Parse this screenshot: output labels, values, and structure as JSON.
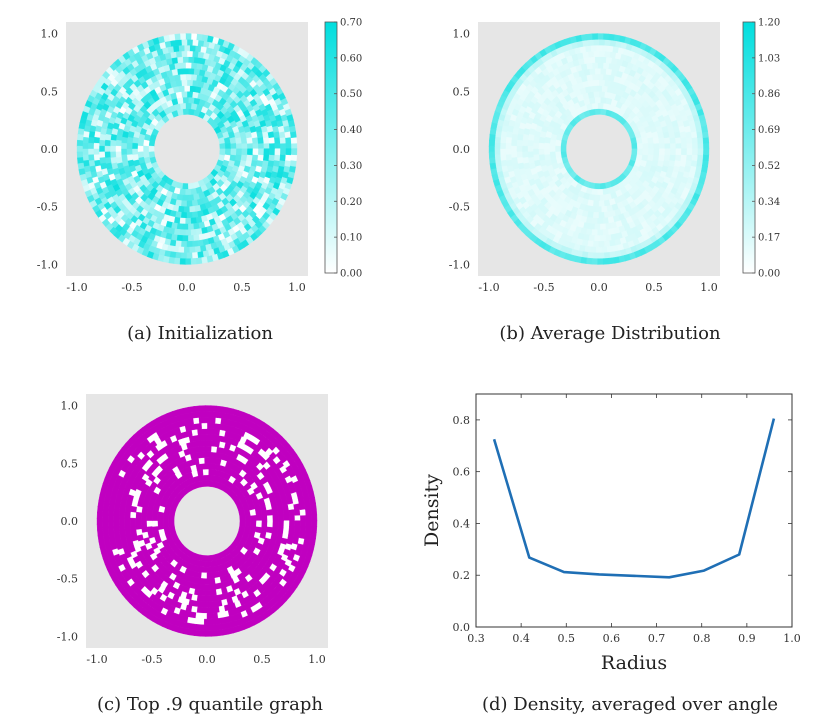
{
  "chart_data": [
    {
      "type": "heatmap",
      "caption": "(a) Initialization",
      "plot": "annulus",
      "xticks": [
        "-1.0",
        "-0.5",
        "0.0",
        "0.5",
        "1.0"
      ],
      "yticks": [
        "1.0",
        "0.5",
        "0.0",
        "-0.5",
        "-1.0"
      ],
      "xlim": [
        -1.1,
        1.1
      ],
      "ylim": [
        -1.1,
        1.1
      ],
      "inner_radius": 0.3,
      "outer_radius": 1.0,
      "colorbar": {
        "ticks": [
          "0.70",
          "0.60",
          "0.50",
          "0.40",
          "0.30",
          "0.20",
          "0.10",
          "0.00"
        ],
        "min": 0,
        "max": 0.7
      },
      "colors": {
        "high": "#00dede",
        "low": "#ffffff",
        "background": "#e6e6e6"
      },
      "pattern": "random"
    },
    {
      "type": "heatmap",
      "caption": "(b) Average Distribution",
      "plot": "annulus",
      "xticks": [
        "-1.0",
        "-0.5",
        "0.0",
        "0.5",
        "1.0"
      ],
      "yticks": [
        "1.0",
        "0.5",
        "0.0",
        "-0.5",
        "-1.0"
      ],
      "xlim": [
        -1.1,
        1.1
      ],
      "ylim": [
        -1.1,
        1.1
      ],
      "inner_radius": 0.3,
      "outer_radius": 1.0,
      "colorbar": {
        "ticks": [
          "1.20",
          "1.03",
          "0.86",
          "0.69",
          "0.52",
          "0.34",
          "0.17",
          "0.00"
        ],
        "min": 0,
        "max": 1.2
      },
      "colors": {
        "high": "#00dede",
        "low": "#ffffff",
        "background": "#e6e6e6"
      },
      "pattern": "rings"
    },
    {
      "type": "heatmap",
      "caption": "(c) Top .9 quantile graph",
      "plot": "annulus",
      "xticks": [
        "-1.0",
        "-0.5",
        "0.0",
        "0.5",
        "1.0"
      ],
      "yticks": [
        "1.0",
        "0.5",
        "0.0",
        "-0.5",
        "-1.0"
      ],
      "xlim": [
        -1.1,
        1.1
      ],
      "ylim": [
        -1.1,
        1.1
      ],
      "inner_radius": 0.3,
      "outer_radius": 1.0,
      "colors": {
        "fill": "#c000c0",
        "hole": "#ffffff",
        "background": "#e6e6e6"
      },
      "pattern": "binary"
    },
    {
      "type": "line",
      "caption": "(d) Density, averaged over angle",
      "xlabel": "Radius",
      "ylabel": "Density",
      "xlim": [
        0.3,
        1.0
      ],
      "ylim": [
        0.0,
        0.9
      ],
      "xticks": [
        "0.3",
        "0.4",
        "0.5",
        "0.6",
        "0.7",
        "0.8",
        "0.9",
        "1.0"
      ],
      "yticks": [
        "0.0",
        "0.2",
        "0.4",
        "0.6",
        "0.8"
      ],
      "color": "#1f6fb5",
      "x": [
        0.34,
        0.418,
        0.495,
        0.573,
        0.728,
        0.805,
        0.883,
        0.96
      ],
      "y": [
        0.725,
        0.268,
        0.212,
        0.203,
        0.192,
        0.218,
        0.28,
        0.805
      ]
    }
  ]
}
